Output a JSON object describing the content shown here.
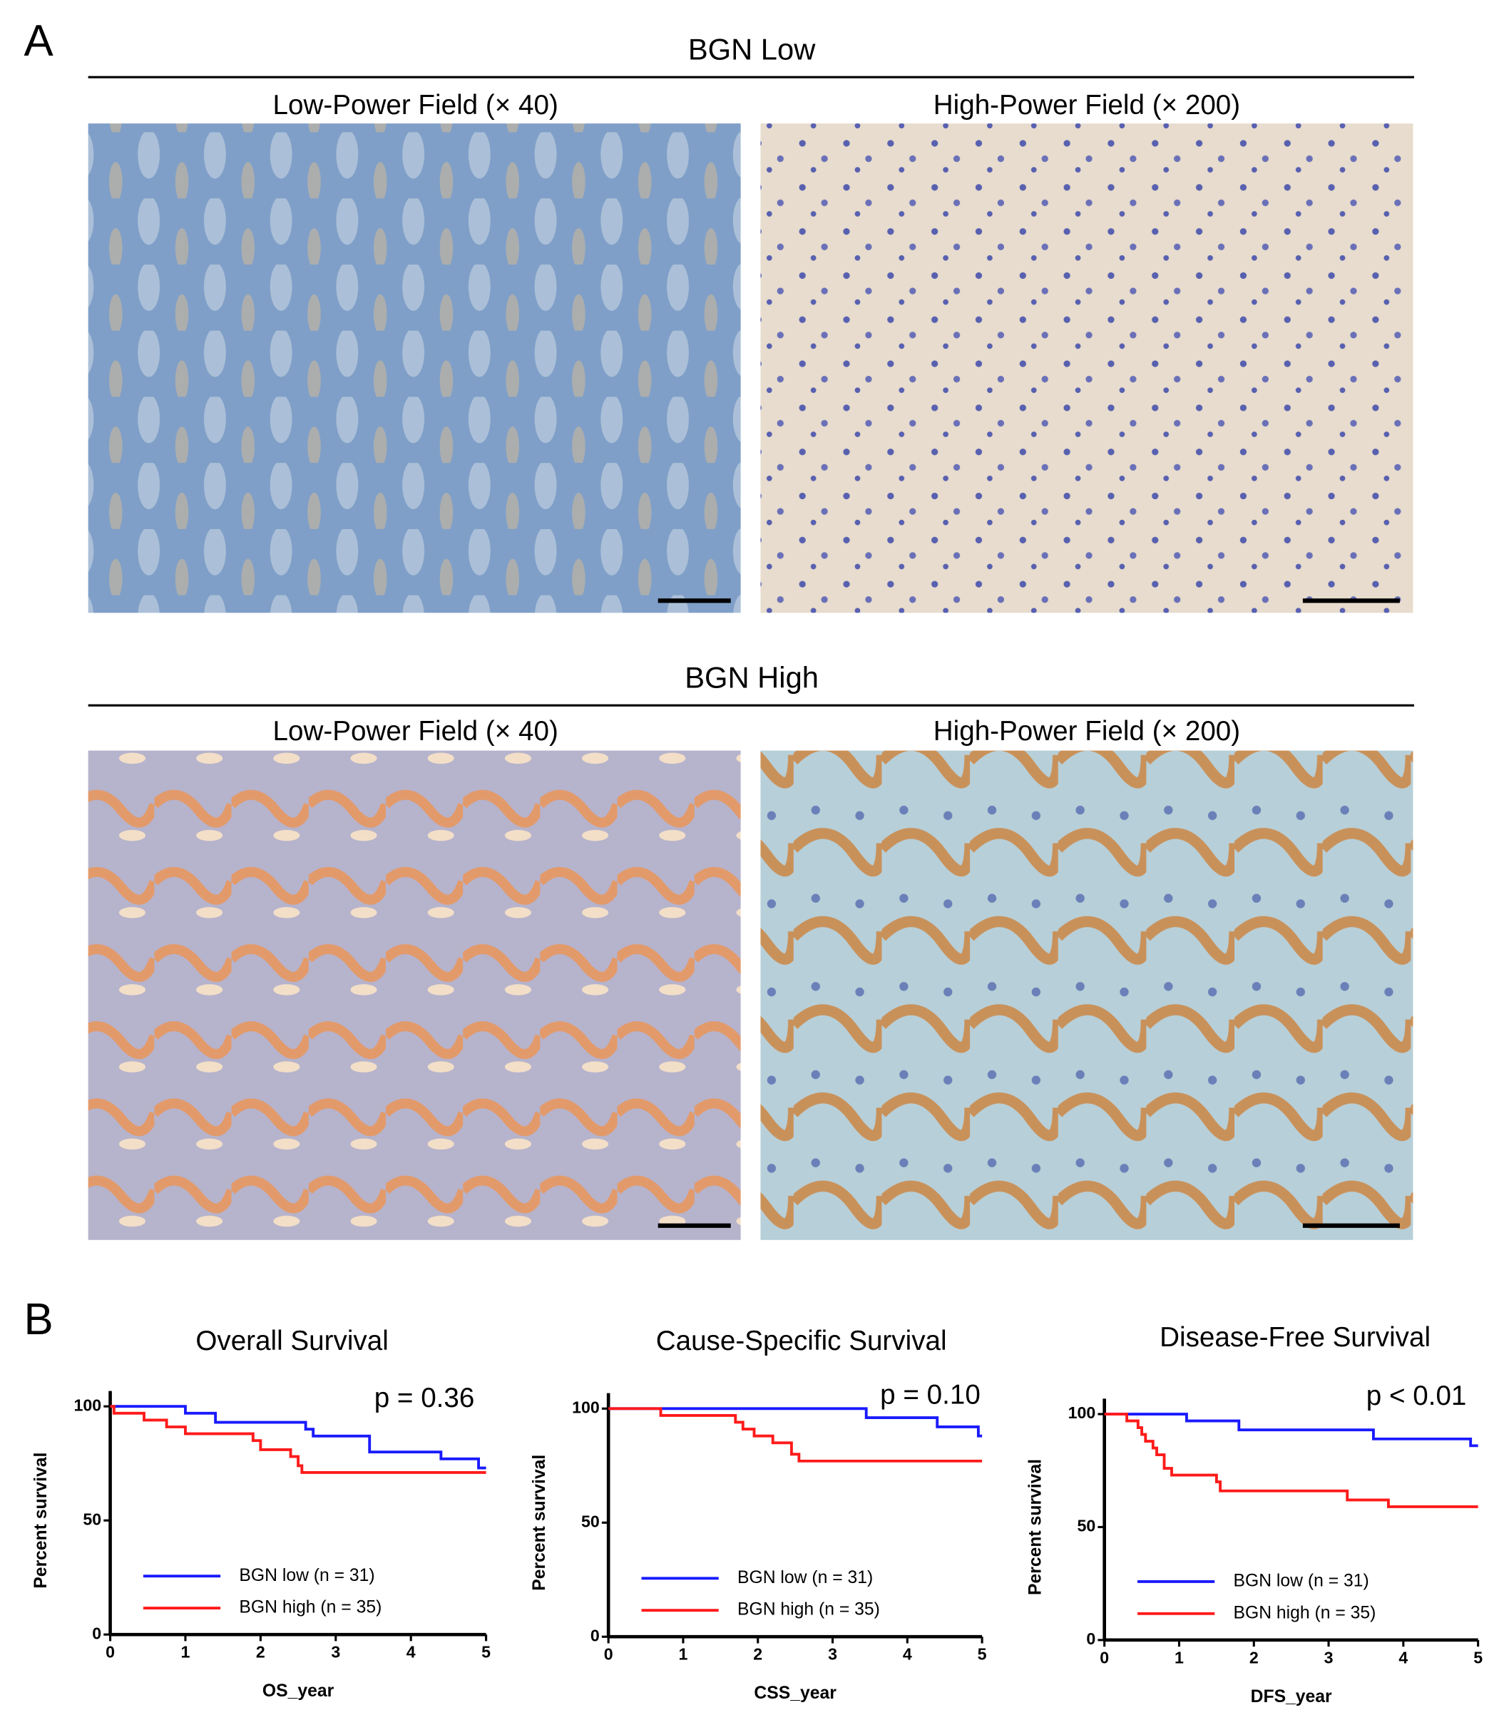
{
  "panel_a": {
    "label": "A",
    "groups": [
      {
        "title": "BGN Low",
        "images": [
          {
            "title": "Low-Power Field (× 40)"
          },
          {
            "title": "High-Power Field (× 200)"
          }
        ]
      },
      {
        "title": "BGN High",
        "images": [
          {
            "title": "Low-Power Field (× 40)"
          },
          {
            "title": "High-Power Field (× 200)"
          }
        ]
      }
    ]
  },
  "panel_b": {
    "label": "B"
  },
  "chart_data": [
    {
      "type": "line",
      "title": "Overall Survival",
      "annotation": "p = 0.36",
      "x_label": "OS_year",
      "y_label": "Percent survival",
      "xlim": [
        0,
        5
      ],
      "ylim": [
        0,
        100
      ],
      "xticks": [
        0,
        1,
        2,
        3,
        4,
        5
      ],
      "yticks": [
        0,
        50,
        100
      ],
      "step": true,
      "series": [
        {
          "name": "BGN low (n = 31)",
          "color": "#1a1aff",
          "x": [
            0,
            1.0,
            1.4,
            2.6,
            2.7,
            3.45,
            4.4,
            4.9,
            5
          ],
          "values": [
            100,
            97,
            93,
            90,
            87,
            80,
            77,
            73,
            73
          ]
        },
        {
          "name": "BGN high (n = 35)",
          "color": "#ff1a1a",
          "x": [
            0,
            0.05,
            0.45,
            0.75,
            1.0,
            1.9,
            2.0,
            2.4,
            2.5,
            2.55,
            5
          ],
          "values": [
            100,
            97,
            94,
            91,
            88,
            85,
            81,
            78,
            74,
            71,
            71
          ]
        }
      ]
    },
    {
      "type": "line",
      "title": "Cause-Specific Survival",
      "annotation": "p = 0.10",
      "x_label": "CSS_year",
      "y_label": "Percent survival",
      "xlim": [
        0,
        5
      ],
      "ylim": [
        0,
        100
      ],
      "xticks": [
        0,
        1,
        2,
        3,
        4,
        5
      ],
      "yticks": [
        0,
        50,
        100
      ],
      "step": true,
      "series": [
        {
          "name": "BGN low (n = 31)",
          "color": "#1a1aff",
          "x": [
            0,
            3.45,
            4.4,
            4.95,
            5
          ],
          "values": [
            100,
            96,
            92,
            88,
            88
          ]
        },
        {
          "name": "BGN high (n = 35)",
          "color": "#ff1a1a",
          "x": [
            0,
            0.7,
            1.7,
            1.8,
            1.95,
            2.2,
            2.45,
            2.55,
            5
          ],
          "values": [
            100,
            97,
            94,
            91,
            88,
            85,
            80,
            77,
            77
          ]
        }
      ]
    },
    {
      "type": "line",
      "title": "Disease-Free Survival",
      "annotation": "p < 0.01",
      "x_label": "DFS_year",
      "y_label": "Percent survival",
      "xlim": [
        0,
        5
      ],
      "ylim": [
        0,
        100
      ],
      "xticks": [
        0,
        1,
        2,
        3,
        4,
        5
      ],
      "yticks": [
        0,
        50,
        100
      ],
      "step": true,
      "series": [
        {
          "name": "BGN low (n = 31)",
          "color": "#1a1aff",
          "x": [
            0,
            1.1,
            1.8,
            3.6,
            4.9,
            5
          ],
          "values": [
            100,
            97,
            93,
            89,
            86,
            86
          ]
        },
        {
          "name": "BGN high (n = 35)",
          "color": "#ff1a1a",
          "x": [
            0,
            0.3,
            0.45,
            0.5,
            0.55,
            0.65,
            0.7,
            0.8,
            0.9,
            1.5,
            1.55,
            3.25,
            3.8,
            5
          ],
          "values": [
            100,
            97,
            94,
            91,
            88,
            85,
            82,
            76,
            73,
            70,
            66,
            62,
            59,
            59
          ]
        }
      ]
    }
  ]
}
